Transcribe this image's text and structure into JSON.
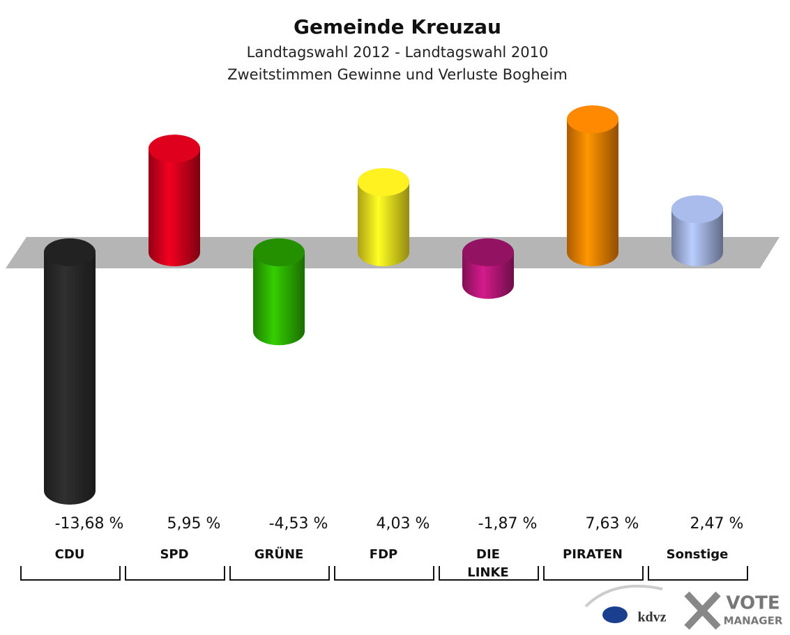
{
  "chart_data": {
    "type": "bar",
    "title": "Gemeinde Kreuzau",
    "subtitle": [
      "Landtagswahl 2012 - Landtagswahl 2010",
      "Zweitstimmen Gewinne und Verluste Bogheim"
    ],
    "categories": [
      "CDU",
      "SPD",
      "GRÜNE",
      "FDP",
      "DIE LINKE",
      "PIRATEN",
      "Sonstige"
    ],
    "values": [
      -13.68,
      5.95,
      -4.53,
      4.03,
      -1.87,
      7.63,
      2.47
    ],
    "value_labels": [
      "-13,68 %",
      "5,95 %",
      "-4,53 %",
      "4,03 %",
      "-1,87 %",
      "7,63 %",
      "2,47 %"
    ],
    "colors": [
      "#2a2a2a",
      "#d4001c",
      "#2db400",
      "#f5e61e",
      "#b8177a",
      "#f58200",
      "#a2b3e0"
    ]
  },
  "footer": {
    "brand": "kdvz",
    "logo_top": "VOTE",
    "logo_bottom": "MANAGER"
  }
}
